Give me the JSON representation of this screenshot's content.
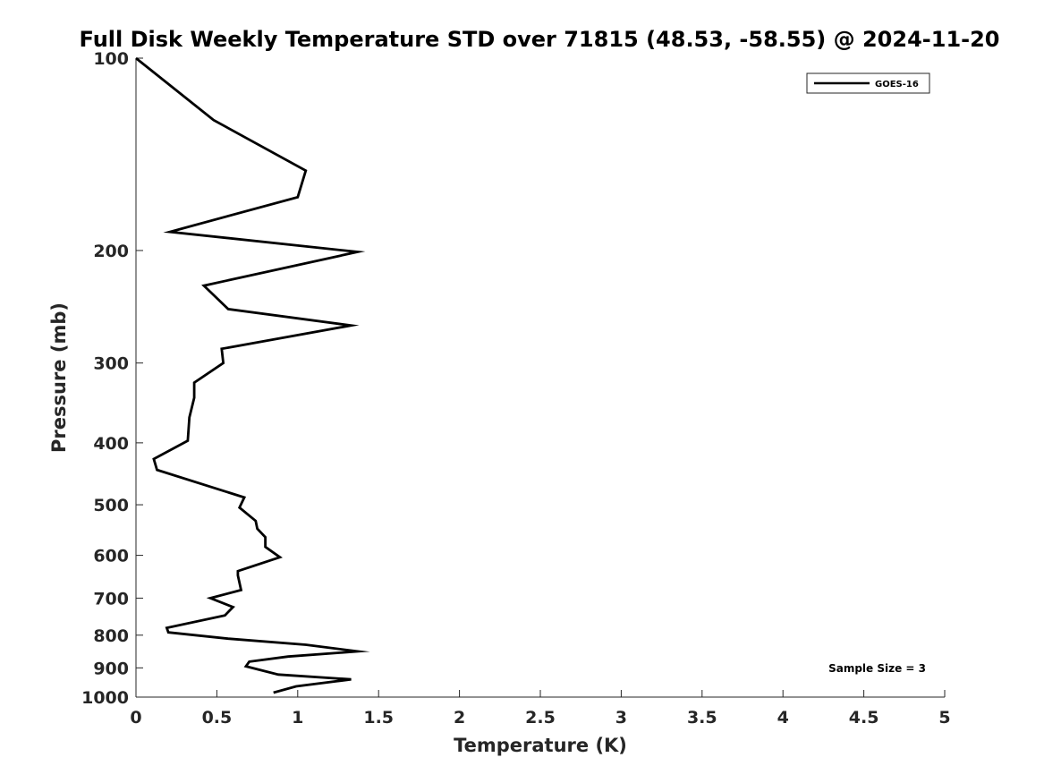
{
  "chart_data": {
    "type": "line",
    "title": "Full Disk Weekly Temperature STD over 71815 (48.53, -58.55) @ 2024-11-20",
    "xlabel": "Temperature (K)",
    "ylabel": "Pressure (mb)",
    "xlim": [
      0,
      5
    ],
    "ylim": [
      100,
      1000
    ],
    "y_scale": "log",
    "y_reversed": true,
    "x_ticks": [
      "0",
      "0.5",
      "1",
      "1.5",
      "2",
      "2.5",
      "3",
      "3.5",
      "4",
      "4.5",
      "5"
    ],
    "y_ticks": [
      "100",
      "200",
      "300",
      "400",
      "500",
      "600",
      "700",
      "800",
      "900",
      "1000"
    ],
    "grid": false,
    "legend_position": "top-right",
    "series": [
      {
        "name": "GOES-16",
        "color": "#000000",
        "points": [
          [
            0.0,
            100
          ],
          [
            0.48,
            125
          ],
          [
            1.05,
            150
          ],
          [
            1.0,
            165
          ],
          [
            0.21,
            187
          ],
          [
            1.37,
            201
          ],
          [
            0.42,
            227
          ],
          [
            0.57,
            247
          ],
          [
            1.33,
            262
          ],
          [
            0.53,
            285
          ],
          [
            0.54,
            300
          ],
          [
            0.36,
            322
          ],
          [
            0.36,
            340
          ],
          [
            0.33,
            365
          ],
          [
            0.32,
            397
          ],
          [
            0.11,
            424
          ],
          [
            0.13,
            441
          ],
          [
            0.67,
            487
          ],
          [
            0.64,
            505
          ],
          [
            0.74,
            530
          ],
          [
            0.75,
            545
          ],
          [
            0.8,
            562
          ],
          [
            0.8,
            582
          ],
          [
            0.89,
            604
          ],
          [
            0.63,
            635
          ],
          [
            0.63,
            645
          ],
          [
            0.65,
            680
          ],
          [
            0.46,
            700
          ],
          [
            0.6,
            723
          ],
          [
            0.55,
            745
          ],
          [
            0.19,
            779
          ],
          [
            0.2,
            792
          ],
          [
            0.57,
            810
          ],
          [
            1.05,
            828
          ],
          [
            1.37,
            848
          ],
          [
            0.94,
            864
          ],
          [
            0.7,
            880
          ],
          [
            0.68,
            895
          ],
          [
            0.88,
            922
          ],
          [
            1.33,
            938
          ],
          [
            0.99,
            962
          ],
          [
            0.85,
            984
          ]
        ]
      }
    ],
    "annotation": "Sample Size = 3"
  }
}
